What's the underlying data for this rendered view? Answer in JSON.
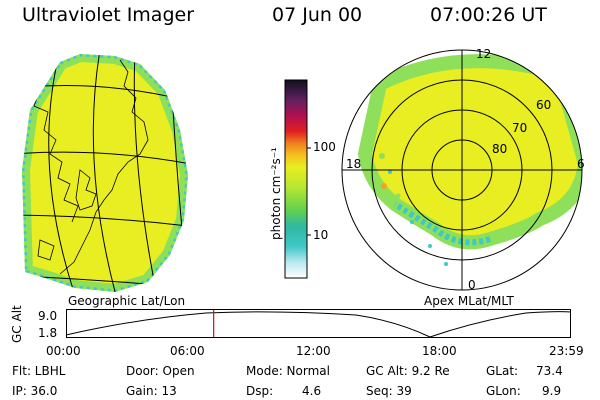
{
  "header": {
    "instrument": "Ultraviolet Imager",
    "date": "07 Jun 00",
    "time": "07:00:26 UT"
  },
  "colorbar": {
    "unit_label": "photon cm⁻²s⁻¹",
    "ticks": [
      "100",
      "10"
    ]
  },
  "left_panel": {
    "caption": "Geographic Lat/Lon"
  },
  "right_panel": {
    "caption": "Apex MLat/MLT",
    "lat_labels": [
      "80",
      "70",
      "60"
    ],
    "mlt_labels": [
      "12",
      "18",
      "6",
      "0"
    ]
  },
  "altitude_plot": {
    "ylabel": "GC Alt",
    "yticks": [
      "9.0",
      "1.8"
    ],
    "xticks": [
      "00:00",
      "06:00",
      "12:00",
      "18:00",
      "23:59"
    ],
    "current_time_fraction": 0.292
  },
  "info": {
    "flt": "Flt: LBHL",
    "door": "Door: Open",
    "mode": "Mode: Normal",
    "gc_alt": "GC Alt: 9.2 Re",
    "glat_label": "GLat:",
    "glat_value": "73.4",
    "ip": "IP: 36.0",
    "gain": "Gain: 13",
    "dsp_label": "Dsp:",
    "dsp_value": "4.6",
    "seq": "Seq: 39",
    "glon_label": "GLon:",
    "glon_value": "9.9"
  },
  "colors": {
    "fill_main": "#e6ec1e",
    "fill_green": "#8ee05a",
    "fill_cyan": "#3ec8c8",
    "marker_red": "#cc1010"
  }
}
